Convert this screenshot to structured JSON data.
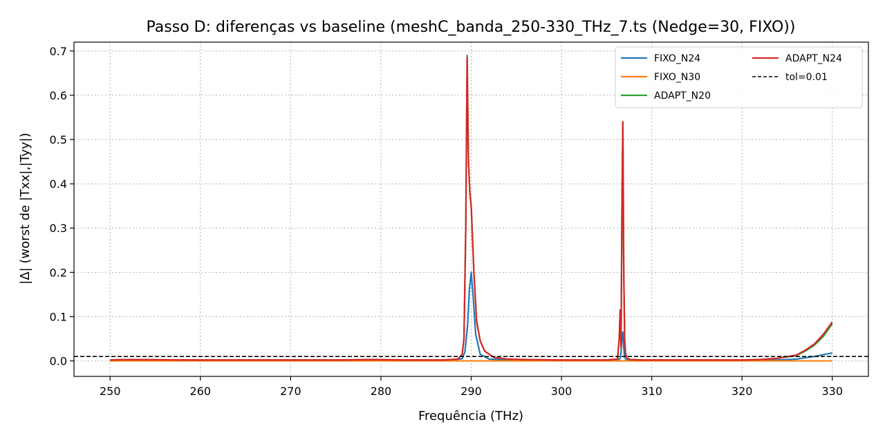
{
  "chart_data": {
    "type": "line",
    "title": "Passo D: diferenças vs baseline (meshC_banda_250-330_THz_7.ts (Nedge=30, FIXO))",
    "xlabel": "Frequência (THz)",
    "ylabel": "|Δ| (worst de |Txx|,|Tyy|)",
    "xlim": [
      246,
      334
    ],
    "ylim": [
      -0.035,
      0.72
    ],
    "xticks": [
      250,
      260,
      270,
      280,
      290,
      300,
      310,
      320,
      330
    ],
    "yticks": [
      0.0,
      0.1,
      0.2,
      0.3,
      0.4,
      0.5,
      0.6,
      0.7
    ],
    "ytick_labels": [
      "0.0",
      "0.1",
      "0.2",
      "0.3",
      "0.4",
      "0.5",
      "0.6",
      "0.7"
    ],
    "grid": true,
    "legend_position": "top-right",
    "series": [
      {
        "name": "FIXO_N24",
        "color": "#1f77b4",
        "x": [
          250,
          260,
          270,
          280,
          285,
          288,
          289,
          289.3,
          289.6,
          289.8,
          290.0,
          290.2,
          290.5,
          291,
          292,
          295,
          300,
          305,
          306.3,
          306.5,
          306.6,
          306.7,
          306.8,
          306.9,
          307.0,
          307.2,
          308,
          310,
          320,
          322,
          324,
          326,
          327,
          328,
          329,
          330
        ],
        "y": [
          0.002,
          0.001,
          0.002,
          0.002,
          0.001,
          0.002,
          0.005,
          0.02,
          0.08,
          0.16,
          0.2,
          0.15,
          0.06,
          0.015,
          0.004,
          0.002,
          0.001,
          0.001,
          0.002,
          0.006,
          0.02,
          0.05,
          0.065,
          0.03,
          0.008,
          0.002,
          0.001,
          0.001,
          0.001,
          0.001,
          0.002,
          0.004,
          0.007,
          0.01,
          0.014,
          0.018
        ]
      },
      {
        "name": "FIXO_N30",
        "color": "#ff7f0e",
        "x": [
          250,
          260,
          270,
          280,
          290,
          300,
          310,
          320,
          330
        ],
        "y": [
          0,
          0,
          0,
          0,
          0,
          0,
          0,
          0,
          0
        ]
      },
      {
        "name": "ADAPT_N20",
        "color": "#2ca02c",
        "x": [
          250,
          252,
          260,
          266,
          270,
          275,
          279,
          283,
          287,
          288.5,
          289,
          289.2,
          289.4,
          289.55,
          289.7,
          289.85,
          290.0,
          290.3,
          290.6,
          291,
          291.5,
          292.5,
          294,
          296,
          300,
          305,
          306.2,
          306.4,
          306.5,
          306.6,
          306.7,
          306.8,
          306.9,
          307.0,
          307.1,
          307.3,
          307.6,
          309,
          315,
          320,
          322,
          324,
          326,
          327,
          328,
          329,
          330
        ],
        "y": [
          0.002,
          0.003,
          0.002,
          0.002,
          0.002,
          0.002,
          0.003,
          0.002,
          0.002,
          0.004,
          0.015,
          0.05,
          0.3,
          0.69,
          0.45,
          0.38,
          0.35,
          0.2,
          0.09,
          0.045,
          0.022,
          0.008,
          0.004,
          0.003,
          0.002,
          0.002,
          0.004,
          0.05,
          0.115,
          0.03,
          0.35,
          0.54,
          0.2,
          0.05,
          0.015,
          0.006,
          0.003,
          0.002,
          0.002,
          0.002,
          0.003,
          0.006,
          0.012,
          0.022,
          0.035,
          0.055,
          0.084
        ]
      },
      {
        "name": "ADAPT_N24",
        "color": "#d62728",
        "x": [
          250,
          252,
          260,
          266,
          270,
          275,
          279,
          283,
          287,
          288.5,
          289,
          289.2,
          289.4,
          289.55,
          289.7,
          289.85,
          290.0,
          290.3,
          290.6,
          291,
          291.5,
          292.5,
          294,
          296,
          300,
          305,
          306.2,
          306.4,
          306.5,
          306.6,
          306.7,
          306.8,
          306.9,
          307.0,
          307.1,
          307.3,
          307.6,
          309,
          315,
          320,
          322,
          324,
          326,
          327,
          328,
          329,
          330
        ],
        "y": [
          0.002,
          0.003,
          0.002,
          0.002,
          0.002,
          0.002,
          0.003,
          0.002,
          0.002,
          0.004,
          0.015,
          0.05,
          0.3,
          0.685,
          0.45,
          0.38,
          0.35,
          0.2,
          0.09,
          0.045,
          0.022,
          0.008,
          0.004,
          0.003,
          0.002,
          0.002,
          0.004,
          0.05,
          0.115,
          0.03,
          0.35,
          0.54,
          0.2,
          0.05,
          0.015,
          0.006,
          0.003,
          0.002,
          0.002,
          0.002,
          0.003,
          0.006,
          0.013,
          0.024,
          0.038,
          0.06,
          0.088
        ]
      }
    ],
    "reference_lines": [
      {
        "name": "tol=0.01",
        "y": 0.01,
        "color": "#000000",
        "style": "dashed"
      }
    ],
    "legend_order": [
      "FIXO_N24",
      "FIXO_N30",
      "ADAPT_N20",
      "ADAPT_N24",
      "tol=0.01"
    ]
  }
}
